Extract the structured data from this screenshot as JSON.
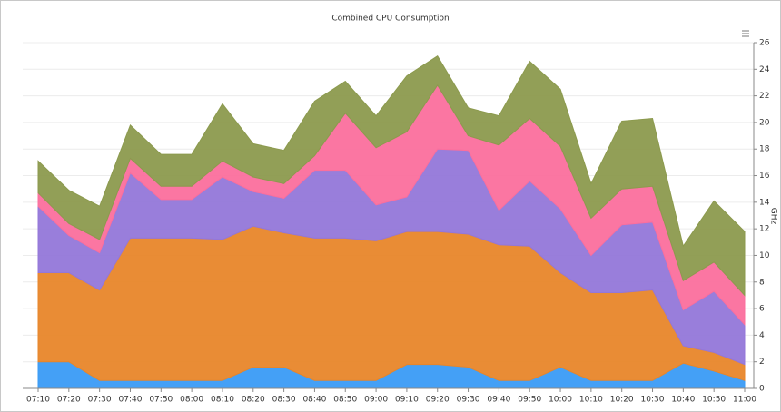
{
  "chart_data": {
    "type": "stacked_area",
    "title": "Combined CPU Consumption",
    "y_label": "GHz",
    "categories": [
      "07:10",
      "07:20",
      "07:30",
      "07:40",
      "07:50",
      "08:00",
      "08:10",
      "08:20",
      "08:30",
      "08:40",
      "08:50",
      "09:00",
      "09:10",
      "09:20",
      "09:30",
      "09:40",
      "09:50",
      "10:00",
      "10:10",
      "10:20",
      "10:30",
      "10:40",
      "10:50",
      "11:00"
    ],
    "series": [
      {
        "color": "#3a9bf5",
        "values": [
          2.0,
          2.0,
          0.6,
          0.6,
          0.6,
          0.6,
          0.6,
          1.6,
          1.6,
          0.6,
          0.6,
          0.6,
          1.8,
          1.8,
          1.6,
          0.6,
          0.6,
          1.6,
          0.6,
          0.6,
          0.6,
          1.9,
          1.3,
          0.6
        ]
      },
      {
        "color": "#e8862a",
        "values": [
          6.7,
          6.7,
          6.8,
          10.7,
          10.7,
          10.7,
          10.6,
          10.6,
          10.1,
          10.7,
          10.7,
          10.5,
          10.0,
          10.0,
          10.0,
          10.2,
          10.1,
          7.1,
          6.6,
          6.6,
          6.8,
          1.3,
          1.4,
          1.2
        ]
      },
      {
        "color": "#9477d9",
        "values": [
          5.0,
          2.8,
          2.8,
          4.9,
          2.9,
          2.9,
          4.7,
          2.6,
          2.6,
          5.1,
          5.1,
          2.7,
          2.6,
          6.2,
          6.3,
          2.6,
          4.9,
          4.8,
          2.8,
          5.1,
          5.1,
          2.7,
          4.6,
          3.0
        ]
      },
      {
        "color": "#fb6f9d",
        "values": [
          1.0,
          0.9,
          1.0,
          1.1,
          1.0,
          1.0,
          1.2,
          1.1,
          1.1,
          1.1,
          4.3,
          4.3,
          4.9,
          4.8,
          1.1,
          4.9,
          4.7,
          4.7,
          2.8,
          2.7,
          2.7,
          2.2,
          2.2,
          2.2
        ]
      },
      {
        "color": "#8c9a4e",
        "values": [
          2.4,
          2.5,
          2.5,
          2.5,
          2.4,
          2.4,
          4.3,
          2.5,
          2.5,
          4.1,
          2.4,
          2.4,
          4.2,
          2.2,
          2.1,
          2.2,
          4.3,
          4.3,
          2.6,
          5.1,
          5.1,
          2.6,
          4.6,
          4.8
        ]
      }
    ],
    "ylim": [
      0,
      26
    ],
    "yticks": [
      0,
      2,
      4,
      6,
      8,
      10,
      12,
      14,
      16,
      18,
      20,
      22,
      24,
      26
    ],
    "grid": true
  }
}
